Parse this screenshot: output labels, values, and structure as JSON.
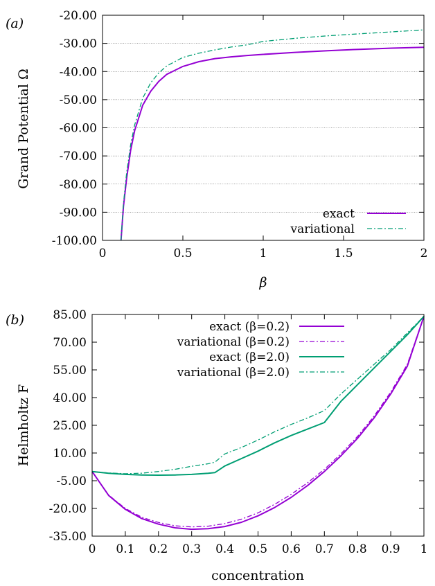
{
  "chart_data": [
    {
      "panel_label": "(a)",
      "type": "line",
      "xlabel": "β",
      "ylabel": "Grand Potential Ω",
      "xlim": [
        0,
        2
      ],
      "ylim": [
        -100,
        -20
      ],
      "x_ticks": [
        "0",
        "0.5",
        "1",
        "1.5",
        "2"
      ],
      "y_ticks": [
        "-100.00",
        "-90.00",
        "-80.00",
        "-70.00",
        "-60.00",
        "-50.00",
        "-40.00",
        "-30.00",
        "-20.00"
      ],
      "grid": "horizontal dotted",
      "legend_position": "bottom-right",
      "series": [
        {
          "name": "exact",
          "color": "#9400d3",
          "style": "solid",
          "x": [
            0.115,
            0.13,
            0.15,
            0.175,
            0.2,
            0.25,
            0.3,
            0.35,
            0.4,
            0.5,
            0.6,
            0.7,
            0.8,
            0.9,
            1.0,
            1.2,
            1.4,
            1.6,
            1.8,
            2.0
          ],
          "y": [
            -100,
            -88,
            -78,
            -68,
            -61,
            -52,
            -47,
            -43.5,
            -41,
            -38.2,
            -36.5,
            -35.4,
            -34.8,
            -34.3,
            -33.9,
            -33.2,
            -32.6,
            -32.1,
            -31.7,
            -31.4
          ]
        },
        {
          "name": "variational",
          "color": "#009e73",
          "style": "dash-dot",
          "x": [
            0.115,
            0.13,
            0.15,
            0.175,
            0.2,
            0.25,
            0.3,
            0.35,
            0.4,
            0.5,
            0.6,
            0.7,
            0.8,
            0.9,
            1.0,
            1.2,
            1.4,
            1.6,
            1.8,
            2.0
          ],
          "y": [
            -100,
            -87,
            -76,
            -66,
            -59,
            -49.5,
            -44,
            -40.5,
            -38,
            -35,
            -33.5,
            -32.3,
            -31.3,
            -30.5,
            -29.3,
            -28.2,
            -27.3,
            -26.6,
            -25.9,
            -25.2
          ]
        }
      ]
    },
    {
      "panel_label": "(b)",
      "type": "line",
      "xlabel": "concentration",
      "ylabel": "Helmholtz F",
      "xlim": [
        0,
        1
      ],
      "ylim": [
        -35,
        85
      ],
      "x_ticks": [
        "0",
        "0.1",
        "0.2",
        "0.3",
        "0.4",
        "0.5",
        "0.6",
        "0.7",
        "0.8",
        "0.9",
        "1"
      ],
      "y_ticks": [
        "-35.00",
        "-20.00",
        "-5.00",
        "10.00",
        "25.00",
        "40.00",
        "55.00",
        "70.00",
        "85.00"
      ],
      "grid": "off",
      "legend_position": "top-center",
      "series": [
        {
          "name": "exact (β=0.2)",
          "color": "#9400d3",
          "style": "solid",
          "x": [
            0,
            0.05,
            0.1,
            0.15,
            0.2,
            0.25,
            0.3,
            0.35,
            0.4,
            0.45,
            0.5,
            0.55,
            0.6,
            0.65,
            0.7,
            0.75,
            0.8,
            0.85,
            0.9,
            0.95,
            1.0
          ],
          "y": [
            0,
            -13,
            -20.5,
            -25.5,
            -28.5,
            -30.5,
            -31.3,
            -31.0,
            -29.8,
            -27.5,
            -24.0,
            -19.5,
            -14.0,
            -7.5,
            0.0,
            8.5,
            18.0,
            29.0,
            42.0,
            57.0,
            84.0
          ]
        },
        {
          "name": "variational (β=0.2)",
          "color": "#9400d3",
          "style": "dash-dot",
          "x": [
            0,
            0.05,
            0.1,
            0.15,
            0.2,
            0.25,
            0.3,
            0.35,
            0.4,
            0.45,
            0.5,
            0.55,
            0.6,
            0.65,
            0.7,
            0.75,
            0.8,
            0.85,
            0.9,
            0.95,
            1.0
          ],
          "y": [
            0,
            -12.8,
            -20.0,
            -24.8,
            -27.6,
            -29.4,
            -30.0,
            -29.6,
            -28.2,
            -25.8,
            -22.4,
            -17.8,
            -12.4,
            -6.0,
            1.2,
            9.6,
            19.0,
            30.0,
            43.0,
            58.0,
            84.0
          ]
        },
        {
          "name": "exact (β=2.0)",
          "color": "#009e73",
          "style": "solid",
          "x": [
            0,
            0.05,
            0.1,
            0.15,
            0.2,
            0.25,
            0.3,
            0.35,
            0.37,
            0.4,
            0.45,
            0.5,
            0.55,
            0.6,
            0.65,
            0.7,
            0.75,
            0.8,
            0.85,
            0.9,
            0.95,
            1.0
          ],
          "y": [
            0,
            -1.0,
            -1.6,
            -1.9,
            -2.0,
            -1.9,
            -1.6,
            -1.0,
            -0.6,
            3.0,
            7.0,
            11.0,
            15.5,
            19.5,
            23.0,
            26.5,
            38.0,
            47.0,
            56.0,
            65.0,
            74.0,
            84.0
          ]
        },
        {
          "name": "variational (β=2.0)",
          "color": "#009e73",
          "style": "dash-dot",
          "x": [
            0,
            0.05,
            0.1,
            0.15,
            0.2,
            0.25,
            0.3,
            0.35,
            0.37,
            0.4,
            0.45,
            0.5,
            0.55,
            0.6,
            0.65,
            0.7,
            0.75,
            0.8,
            0.85,
            0.9,
            0.95,
            1.0
          ],
          "y": [
            0,
            -0.8,
            -1.2,
            -0.9,
            0.0,
            1.2,
            2.8,
            4.2,
            5.0,
            9.5,
            13.0,
            17.0,
            21.5,
            25.5,
            29.0,
            33.0,
            42.0,
            50.0,
            58.0,
            66.0,
            75.0,
            84.0
          ]
        }
      ]
    }
  ]
}
